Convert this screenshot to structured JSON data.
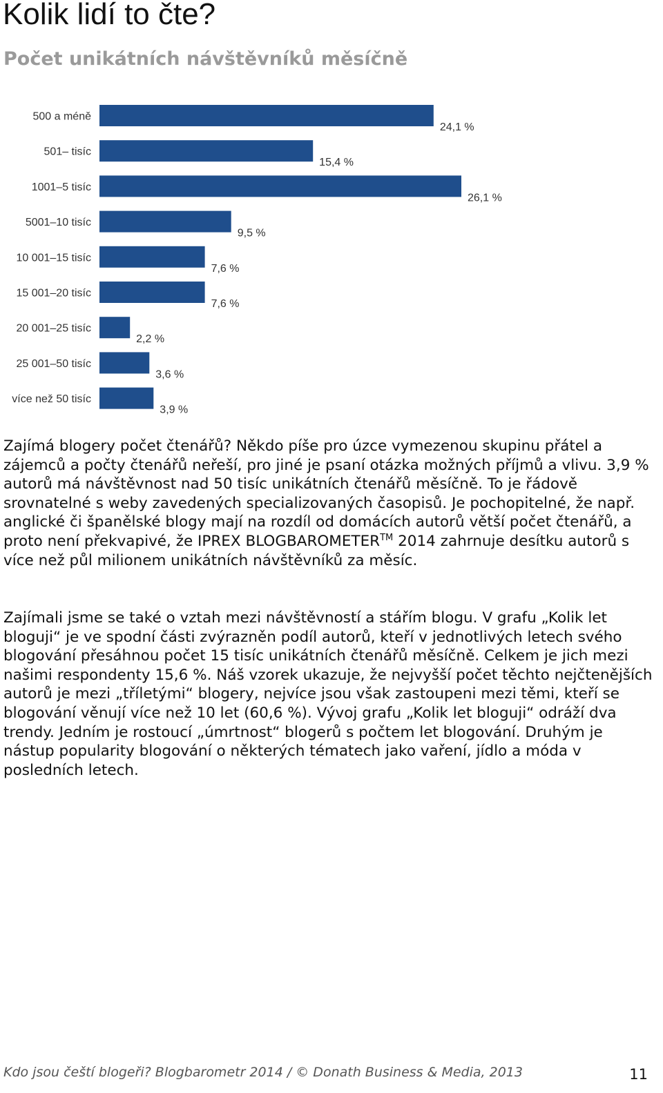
{
  "header": {
    "title": "Kolik lidí to čte?",
    "subtitle": "Počet unikátních návštěvníků měsíčně"
  },
  "chart_data": {
    "type": "bar",
    "orientation": "horizontal",
    "categories": [
      "500 a méně",
      "501– tisíc",
      "1001–5 tisíc",
      "5001–10 tisíc",
      "10 001–15 tisíc",
      "15 001–20 tisíc",
      "20 001–25 tisíc",
      "25 001–50 tisíc",
      "více než 50 tisíc"
    ],
    "values": [
      24.1,
      15.4,
      26.1,
      9.5,
      7.6,
      7.6,
      2.2,
      3.6,
      3.9
    ],
    "value_labels": [
      "24,1 %",
      "15,4 %",
      "26,1 %",
      "9,5 %",
      "7,6 %",
      "7,6 %",
      "2,2 %",
      "3,6 %",
      "3,9 %"
    ],
    "unit": "%",
    "bar_color": "#1f4e8c",
    "grid": false,
    "legend": "none",
    "xlim": [
      0,
      26.1
    ]
  },
  "body": {
    "para1_a": "Zajímá blogery počet čtenářů? Někdo píše pro úzce vymezenou skupinu přátel a zájemců a počty čtenářů neřeší, pro jiné je psaní otázka možných příjmů a vlivu. 3,9 % autorů má návštěvnost nad 50 tisíc unikátních čtenářů měsíčně. To je řádově srovnatelné s weby zavedených specializovaných časopisů. Je pochopitelné, že např. anglické či španělské blogy mají na rozdíl od domácích autorů větší počet čtenářů, a proto není překvapivé, že IPREX BLOGBAROMETER",
    "tm": "TM",
    "para1_b": " 2014 zahrnuje desítku autorů s více než půl milionem unikátních návštěvníků za měsíc.",
    "para2": "Zajímali jsme se také o vztah mezi návštěvností a stářím blogu. V grafu „Kolik let bloguji“ je ve spodní části zvýrazněn podíl autorů, kteří v jednotlivých letech svého blogování přesáhnou počet 15 tisíc unikátních čtenářů měsíčně. Celkem je jich mezi našimi respondenty 15,6 %. Náš vzorek ukazuje, že nejvyšší počet těchto nejčtenějších autorů je mezi „tříletými“ blogery, nejvíce jsou však zastoupeni mezi těmi, kteří se blogování věnují více než 10 let (60,6 %). Vývoj grafu „Kolik let bloguji“ odráží dva trendy. Jedním je rostoucí „úmrtnost“ blogerů s počtem let blogování. Druhým je nástup popularity blogování o některých tématech jako vaření, jídlo a móda v posledních letech."
  },
  "footer": {
    "source": "Kdo jsou čeští blogeři? Blogbarometr 2014 / © Donath Business & Media, 2013",
    "page_number": "11"
  }
}
